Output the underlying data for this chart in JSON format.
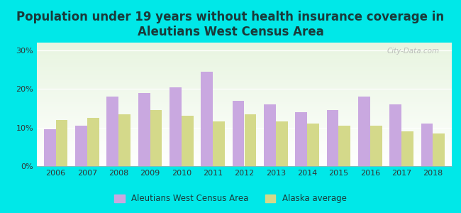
{
  "title": "Population under 19 years without health insurance coverage in\nAleutians West Census Area",
  "years": [
    2006,
    2007,
    2008,
    2009,
    2010,
    2011,
    2012,
    2013,
    2014,
    2015,
    2016,
    2017,
    2018
  ],
  "aleutians": [
    9.5,
    10.5,
    18.0,
    19.0,
    20.5,
    24.5,
    17.0,
    16.0,
    14.0,
    14.5,
    18.0,
    16.0,
    11.0
  ],
  "alaska": [
    12.0,
    12.5,
    13.5,
    14.5,
    13.0,
    11.5,
    13.5,
    11.5,
    11.0,
    10.5,
    10.5,
    9.0,
    8.5
  ],
  "bar_color_aleutians": "#c9a8e0",
  "bar_color_alaska": "#d4d98a",
  "bg_outer": "#00e8e8",
  "bg_chart_top": "#e8f5e0",
  "bg_chart_bottom": "#ffffff",
  "ylim": [
    0,
    32
  ],
  "yticks": [
    0,
    10,
    20,
    30
  ],
  "ytick_labels": [
    "0%",
    "10%",
    "20%",
    "30%"
  ],
  "legend_label_aleutians": "Aleutians West Census Area",
  "legend_label_alaska": "Alaska average",
  "title_fontsize": 12,
  "title_color": "#1a3a3a",
  "watermark": "City-Data.com"
}
